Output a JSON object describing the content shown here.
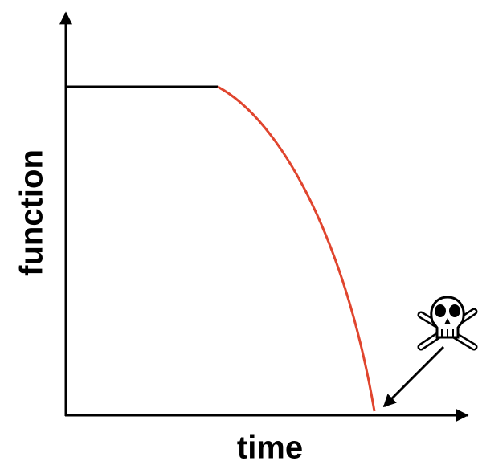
{
  "y_axis_label": "function",
  "x_axis_label": "time"
}
